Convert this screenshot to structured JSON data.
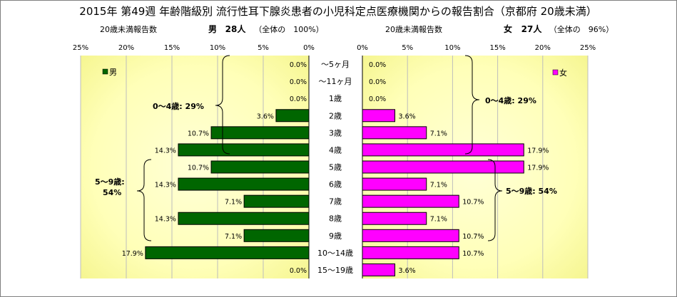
{
  "chart_data": {
    "type": "bar",
    "title": "2015年 第49週 年齢階級別 流行性耳下腺炎患者の小児科定点医療機関からの報告割合（京都府 20歳未満）",
    "left_header": {
      "label": "20歳未満報告数",
      "sex": "男",
      "count": "28人",
      "share": "（全体の　100%）"
    },
    "right_header": {
      "label": "20歳未満報告数",
      "sex": "女",
      "count": "27人",
      "share": "（全体の　96%）"
    },
    "xlim": [
      0,
      25
    ],
    "left_ticks": [
      "25%",
      "20%",
      "15%",
      "10%",
      "5%",
      "0%"
    ],
    "right_ticks": [
      "0%",
      "5%",
      "10%",
      "15%",
      "20%",
      "25%"
    ],
    "categories": [
      "～5ヶ月",
      "～11ヶ月",
      "1歳",
      "2歳",
      "3歳",
      "4歳",
      "5歳",
      "6歳",
      "7歳",
      "8歳",
      "9歳",
      "10～14歳",
      "15～19歳"
    ],
    "series": [
      {
        "name": "男",
        "color": "#006600",
        "values": [
          0.0,
          0.0,
          0.0,
          3.6,
          10.7,
          14.3,
          10.7,
          14.3,
          7.1,
          14.3,
          7.1,
          17.9,
          0.0
        ],
        "labels": [
          "0.0%",
          "0.0%",
          "0.0%",
          "3.6%",
          "10.7%",
          "14.3%",
          "10.7%",
          "14.3%",
          "7.1%",
          "14.3%",
          "7.1%",
          "17.9%",
          "0.0%"
        ]
      },
      {
        "name": "女",
        "color": "#ff00ff",
        "values": [
          0.0,
          0.0,
          0.0,
          3.6,
          7.1,
          17.9,
          17.9,
          7.1,
          10.7,
          7.1,
          10.7,
          10.7,
          3.6
        ],
        "labels": [
          "0.0%",
          "0.0%",
          "0.0%",
          "3.6%",
          "7.1%",
          "17.9%",
          "17.9%",
          "7.1%",
          "10.7%",
          "7.1%",
          "10.7%",
          "10.7%",
          "3.6%"
        ]
      }
    ],
    "annotations": {
      "left_0_4": "0～4歳: 29%",
      "left_5_9_line1": "5～9歳:",
      "left_5_9_line2": "54%",
      "right_0_4": "0～4歳: 29%",
      "right_5_9": "5～9歳: 54%"
    },
    "legend_placement": "top-left / top-right of each panel",
    "grid": true
  }
}
